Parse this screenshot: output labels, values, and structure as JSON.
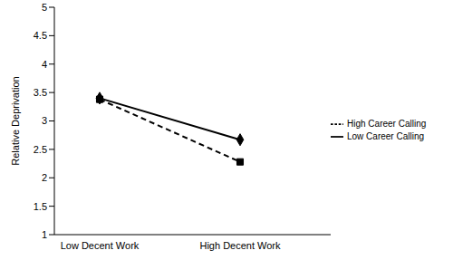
{
  "chart_data": {
    "type": "line",
    "categories": [
      "Low Decent Work",
      "High Decent Work"
    ],
    "y_label": "Relative Deprivation",
    "series": [
      {
        "name": "Low Career Calling",
        "color": "#000000",
        "values": [
          3.4,
          2.67
        ],
        "marker": "diamond",
        "line_style": "solid"
      },
      {
        "name": "High Career Calling",
        "color": "#000000",
        "values": [
          3.38,
          2.28
        ],
        "marker": "square",
        "line_style": "dashed"
      }
    ],
    "ylim": [
      1,
      5
    ],
    "yticks": [
      1,
      1.5,
      2,
      2.5,
      3,
      3.5,
      4,
      4.5,
      5
    ],
    "grid": false,
    "legend": "right"
  }
}
